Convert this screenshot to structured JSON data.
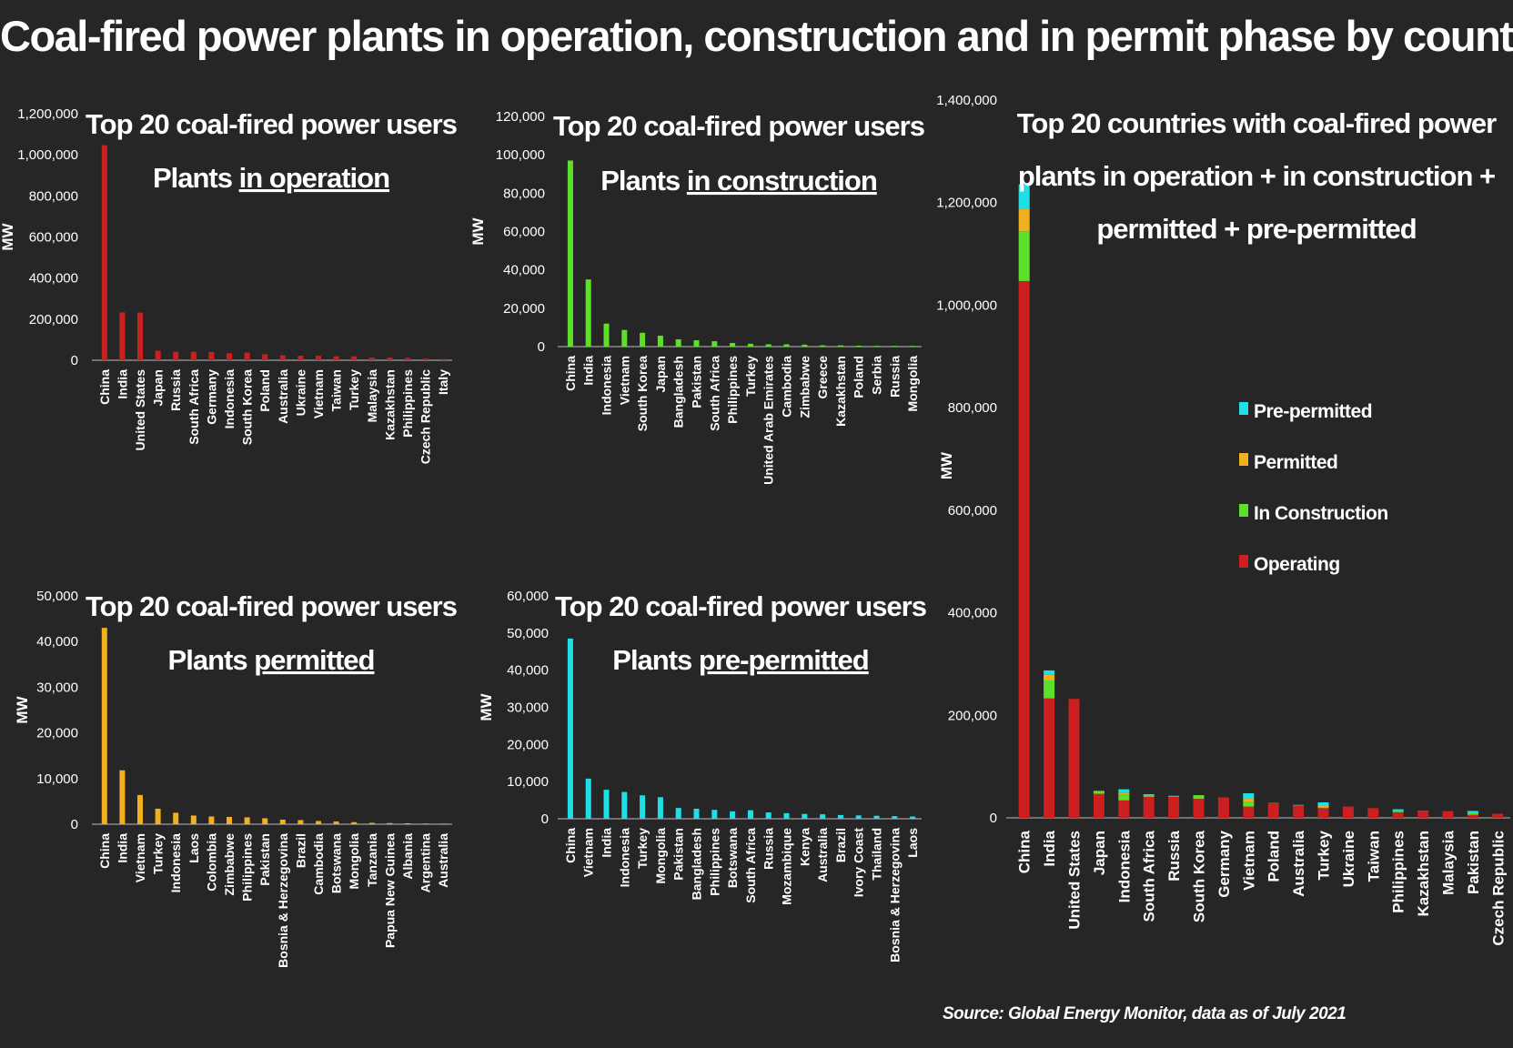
{
  "header": {
    "title": "Coal-fired power plants in operation, construction and in permit phase by country"
  },
  "source": "Source: Global Energy Monitor, data as of July 2021",
  "chart_data": [
    {
      "type": "bar",
      "title": "Top 20 coal-fired power users",
      "subtitle_prefix": "Plants ",
      "subtitle_emph": "in operation",
      "ylabel": "MW",
      "ylim": [
        0,
        1200000
      ],
      "yticks": [
        "0",
        "200,000",
        "400,000",
        "600,000",
        "800,000",
        "1,000,000",
        "1,200,000"
      ],
      "color": "#cc1f1f",
      "categories": [
        "China",
        "India",
        "United States",
        "Japan",
        "Russia",
        "South Africa",
        "Germany",
        "Indonesia",
        "South Korea",
        "Poland",
        "Australia",
        "Ukraine",
        "Vietnam",
        "Taiwan",
        "Turkey",
        "Malaysia",
        "Kazakhstan",
        "Philippines",
        "Czech Republic",
        "Italy"
      ],
      "values": [
        1047000,
        233000,
        232000,
        47000,
        41000,
        41000,
        40000,
        34000,
        37000,
        29000,
        24000,
        22000,
        22000,
        19000,
        19000,
        13000,
        13000,
        11000,
        8000,
        6000
      ]
    },
    {
      "type": "bar",
      "title": "Top 20 coal-fired power users",
      "subtitle_prefix": "Plants ",
      "subtitle_emph": "in construction",
      "ylabel": "MW",
      "ylim": [
        0,
        120000
      ],
      "yticks": [
        "0",
        "20,000",
        "40,000",
        "60,000",
        "80,000",
        "100,000",
        "120,000"
      ],
      "color": "#5de02c",
      "categories": [
        "China",
        "India",
        "Indonesia",
        "Vietnam",
        "South Korea",
        "Japan",
        "Bangladesh",
        "Pakistan",
        "South Africa",
        "Philippines",
        "Turkey",
        "United Arab Emirates",
        "Cambodia",
        "Zimbabwe",
        "Greece",
        "Kazakhstan",
        "Poland",
        "Serbia",
        "Russia",
        "Mongolia"
      ],
      "values": [
        97000,
        35000,
        12000,
        8700,
        7200,
        5700,
        3800,
        3300,
        2800,
        1900,
        1500,
        1200,
        1200,
        1000,
        660,
        640,
        500,
        350,
        330,
        300
      ]
    },
    {
      "type": "bar",
      "title": "Top 20 coal-fired power users",
      "subtitle_prefix": "Plants ",
      "subtitle_emph": "permitted",
      "ylabel": "MW",
      "ylim": [
        0,
        50000
      ],
      "yticks": [
        "0",
        "10,000",
        "20,000",
        "30,000",
        "40,000",
        "50,000"
      ],
      "color": "#f2b01e",
      "categories": [
        "China",
        "India",
        "Vietnam",
        "Turkey",
        "Indonesia",
        "Laos",
        "Colombia",
        "Zimbabwe",
        "Philippines",
        "Pakistan",
        "Bosnia & Herzegovina",
        "Brazil",
        "Cambodia",
        "Botswana",
        "Mongolia",
        "Tanzania",
        "Papua New Guinea",
        "Albania",
        "Argentina",
        "Australia"
      ],
      "values": [
        43000,
        11800,
        6400,
        3400,
        2500,
        1900,
        1700,
        1600,
        1500,
        1300,
        1000,
        900,
        700,
        600,
        450,
        300,
        250,
        200,
        120,
        100
      ]
    },
    {
      "type": "bar",
      "title": "Top 20 coal-fired power users",
      "subtitle_prefix": "Plants ",
      "subtitle_emph": "pre-permitted",
      "ylabel": "MW",
      "ylim": [
        0,
        60000
      ],
      "yticks": [
        "0",
        "10,000",
        "20,000",
        "30,000",
        "40,000",
        "50,000",
        "60,000"
      ],
      "color": "#1fe0e6",
      "categories": [
        "China",
        "Vietnam",
        "India",
        "Indonesia",
        "Turkey",
        "Mongolia",
        "Pakistan",
        "Bangladesh",
        "Philippines",
        "Botswana",
        "South Africa",
        "Russia",
        "Mozambique",
        "Kenya",
        "Australia",
        "Brazil",
        "Ivory Coast",
        "Thailand",
        "Bosnia & Herzegovina",
        "Laos"
      ],
      "values": [
        48500,
        10800,
        7800,
        7200,
        6300,
        5800,
        2900,
        2700,
        2400,
        2000,
        2300,
        1700,
        1500,
        1300,
        1200,
        1000,
        900,
        800,
        700,
        600
      ]
    },
    {
      "type": "bar",
      "stacked": true,
      "title": "Top 20 countries with coal-fired power plants in operation + in construction + permitted + pre-permitted",
      "ylabel": "MW",
      "ylim": [
        0,
        1400000
      ],
      "yticks": [
        "0",
        "200,000",
        "400,000",
        "600,000",
        "800,000",
        "1,000,000",
        "1,200,000",
        "1,400,000"
      ],
      "legend_position": "right",
      "categories": [
        "China",
        "India",
        "United States",
        "Japan",
        "Indonesia",
        "South Africa",
        "Russia",
        "South Korea",
        "Germany",
        "Vietnam",
        "Poland",
        "Australia",
        "Turkey",
        "Ukraine",
        "Taiwan",
        "Philippines",
        "Kazakhstan",
        "Malaysia",
        "Pakistan",
        "Czech Republic"
      ],
      "series": [
        {
          "name": "Operating",
          "color": "#cc1f1f",
          "values": [
            1047000,
            233000,
            232000,
            47000,
            34000,
            41000,
            41000,
            37000,
            40000,
            22000,
            29000,
            24000,
            19000,
            22000,
            19000,
            11000,
            13000,
            13000,
            6000,
            8000
          ]
        },
        {
          "name": "In Construction",
          "color": "#5de02c",
          "values": [
            97000,
            35000,
            0,
            5700,
            12000,
            2800,
            330,
            7200,
            0,
            8700,
            500,
            0,
            1500,
            0,
            0,
            1900,
            640,
            0,
            3300,
            0
          ]
        },
        {
          "name": "Permitted",
          "color": "#f2b01e",
          "values": [
            43000,
            11800,
            0,
            0,
            2500,
            0,
            0,
            0,
            0,
            6400,
            0,
            100,
            3400,
            0,
            0,
            1500,
            0,
            0,
            1300,
            0
          ]
        },
        {
          "name": "Pre-permitted",
          "color": "#1fe0e6",
          "values": [
            48500,
            7800,
            0,
            0,
            7200,
            2300,
            1700,
            0,
            0,
            10800,
            0,
            1200,
            6300,
            0,
            0,
            2400,
            0,
            0,
            2900,
            0
          ]
        }
      ],
      "legend_order": [
        "Pre-permitted",
        "Permitted",
        "In Construction",
        "Operating"
      ]
    }
  ]
}
